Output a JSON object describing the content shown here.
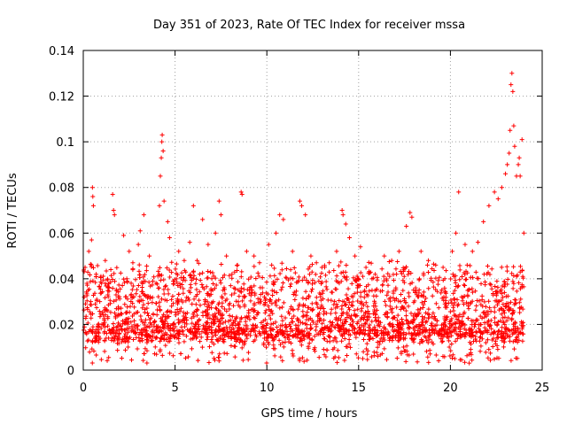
{
  "chart_data": {
    "type": "scatter",
    "title": "Day 351 of 2023, Rate Of TEC Index for receiver mssa",
    "xlabel": "GPS time / hours",
    "ylabel": "ROTI / TECUs",
    "xlim": [
      0,
      25
    ],
    "ylim": [
      0,
      0.14
    ],
    "grid": true,
    "marker": "+",
    "series_color": "#ff0000",
    "x_ticks": [
      0,
      5,
      10,
      15,
      20,
      25
    ],
    "x_tick_labels": [
      "0",
      "5",
      "10",
      "15",
      "20",
      "25"
    ],
    "y_ticks": [
      0,
      0.02,
      0.04,
      0.06,
      0.08,
      0.1,
      0.12,
      0.14
    ],
    "y_tick_labels": [
      "0",
      "0.02",
      "0.04",
      "0.06",
      "0.08",
      "0.1",
      "0.12",
      "0.14"
    ],
    "series": [
      {
        "name": "ROTI",
        "points": [
          [
            0.05,
            0.032
          ],
          [
            0.1,
            0.045
          ],
          [
            0.2,
            0.038
          ],
          [
            0.3,
            0.052
          ],
          [
            0.45,
            0.057
          ],
          [
            0.5,
            0.08
          ],
          [
            0.52,
            0.076
          ],
          [
            0.55,
            0.072
          ],
          [
            0.7,
            0.042
          ],
          [
            0.9,
            0.03
          ],
          [
            1.2,
            0.048
          ],
          [
            1.5,
            0.044
          ],
          [
            1.6,
            0.077
          ],
          [
            1.65,
            0.07
          ],
          [
            1.7,
            0.068
          ],
          [
            2.2,
            0.059
          ],
          [
            2.5,
            0.052
          ],
          [
            2.7,
            0.047
          ],
          [
            3.0,
            0.055
          ],
          [
            3.1,
            0.061
          ],
          [
            3.3,
            0.068
          ],
          [
            3.6,
            0.05
          ],
          [
            4.15,
            0.072
          ],
          [
            4.2,
            0.085
          ],
          [
            4.25,
            0.093
          ],
          [
            4.28,
            0.1
          ],
          [
            4.3,
            0.103
          ],
          [
            4.35,
            0.096
          ],
          [
            4.4,
            0.074
          ],
          [
            4.6,
            0.065
          ],
          [
            4.7,
            0.058
          ],
          [
            5.2,
            0.052
          ],
          [
            5.5,
            0.048
          ],
          [
            5.8,
            0.056
          ],
          [
            6.0,
            0.072
          ],
          [
            6.2,
            0.048
          ],
          [
            6.5,
            0.066
          ],
          [
            6.8,
            0.055
          ],
          [
            7.2,
            0.06
          ],
          [
            7.4,
            0.074
          ],
          [
            7.5,
            0.068
          ],
          [
            7.8,
            0.05
          ],
          [
            8.1,
            0.042
          ],
          [
            8.4,
            0.046
          ],
          [
            8.6,
            0.078
          ],
          [
            8.65,
            0.077
          ],
          [
            8.9,
            0.052
          ],
          [
            9.3,
            0.05
          ],
          [
            9.6,
            0.047
          ],
          [
            10.1,
            0.055
          ],
          [
            10.5,
            0.06
          ],
          [
            10.7,
            0.068
          ],
          [
            10.9,
            0.066
          ],
          [
            11.4,
            0.052
          ],
          [
            11.8,
            0.074
          ],
          [
            11.9,
            0.072
          ],
          [
            12.1,
            0.068
          ],
          [
            12.4,
            0.05
          ],
          [
            12.7,
            0.047
          ],
          [
            13.0,
            0.045
          ],
          [
            13.4,
            0.047
          ],
          [
            13.8,
            0.052
          ],
          [
            14.1,
            0.07
          ],
          [
            14.15,
            0.068
          ],
          [
            14.3,
            0.064
          ],
          [
            14.5,
            0.058
          ],
          [
            14.8,
            0.05
          ],
          [
            15.1,
            0.054
          ],
          [
            15.4,
            0.045
          ],
          [
            15.9,
            0.042
          ],
          [
            16.4,
            0.05
          ],
          [
            16.8,
            0.048
          ],
          [
            17.2,
            0.052
          ],
          [
            17.6,
            0.063
          ],
          [
            17.8,
            0.069
          ],
          [
            17.9,
            0.067
          ],
          [
            18.4,
            0.052
          ],
          [
            18.8,
            0.048
          ],
          [
            19.2,
            0.046
          ],
          [
            19.6,
            0.045
          ],
          [
            20.1,
            0.052
          ],
          [
            20.3,
            0.06
          ],
          [
            20.45,
            0.078
          ],
          [
            20.8,
            0.055
          ],
          [
            21.2,
            0.052
          ],
          [
            21.5,
            0.056
          ],
          [
            21.8,
            0.065
          ],
          [
            22.1,
            0.072
          ],
          [
            22.4,
            0.078
          ],
          [
            22.6,
            0.075
          ],
          [
            22.8,
            0.08
          ],
          [
            23.0,
            0.086
          ],
          [
            23.1,
            0.09
          ],
          [
            23.2,
            0.095
          ],
          [
            23.25,
            0.105
          ],
          [
            23.3,
            0.125
          ],
          [
            23.35,
            0.13
          ],
          [
            23.4,
            0.122
          ],
          [
            23.45,
            0.107
          ],
          [
            23.5,
            0.098
          ],
          [
            23.6,
            0.085
          ],
          [
            23.7,
            0.09
          ],
          [
            23.75,
            0.093
          ],
          [
            23.8,
            0.085
          ],
          [
            23.9,
            0.101
          ],
          [
            24.0,
            0.06
          ]
        ]
      }
    ]
  }
}
